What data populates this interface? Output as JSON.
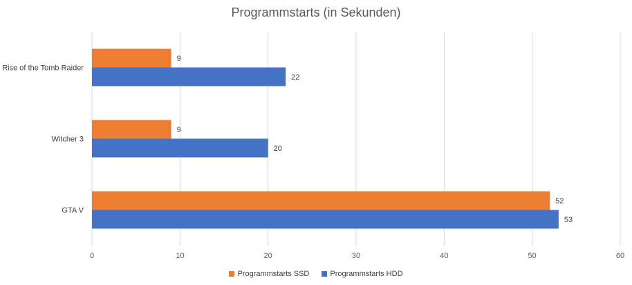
{
  "chart_data": {
    "type": "bar",
    "orientation": "horizontal",
    "title": "Programmstarts (in Sekunden)",
    "xlabel": "",
    "ylabel": "",
    "categories": [
      "Rise of the Tomb Raider",
      "Witcher 3",
      "GTA V"
    ],
    "series": [
      {
        "name": "Programmstarts SSD",
        "values": [
          9,
          9,
          52
        ],
        "color": "#ED7D31"
      },
      {
        "name": "Programmstarts HDD",
        "values": [
          22,
          20,
          53
        ],
        "color": "#4472C4"
      }
    ],
    "xlim": [
      0,
      60
    ],
    "xticks": [
      "0",
      "10",
      "20",
      "30",
      "40",
      "50",
      "60"
    ],
    "grid": true,
    "legend_position": "bottom",
    "data_labels": true
  }
}
